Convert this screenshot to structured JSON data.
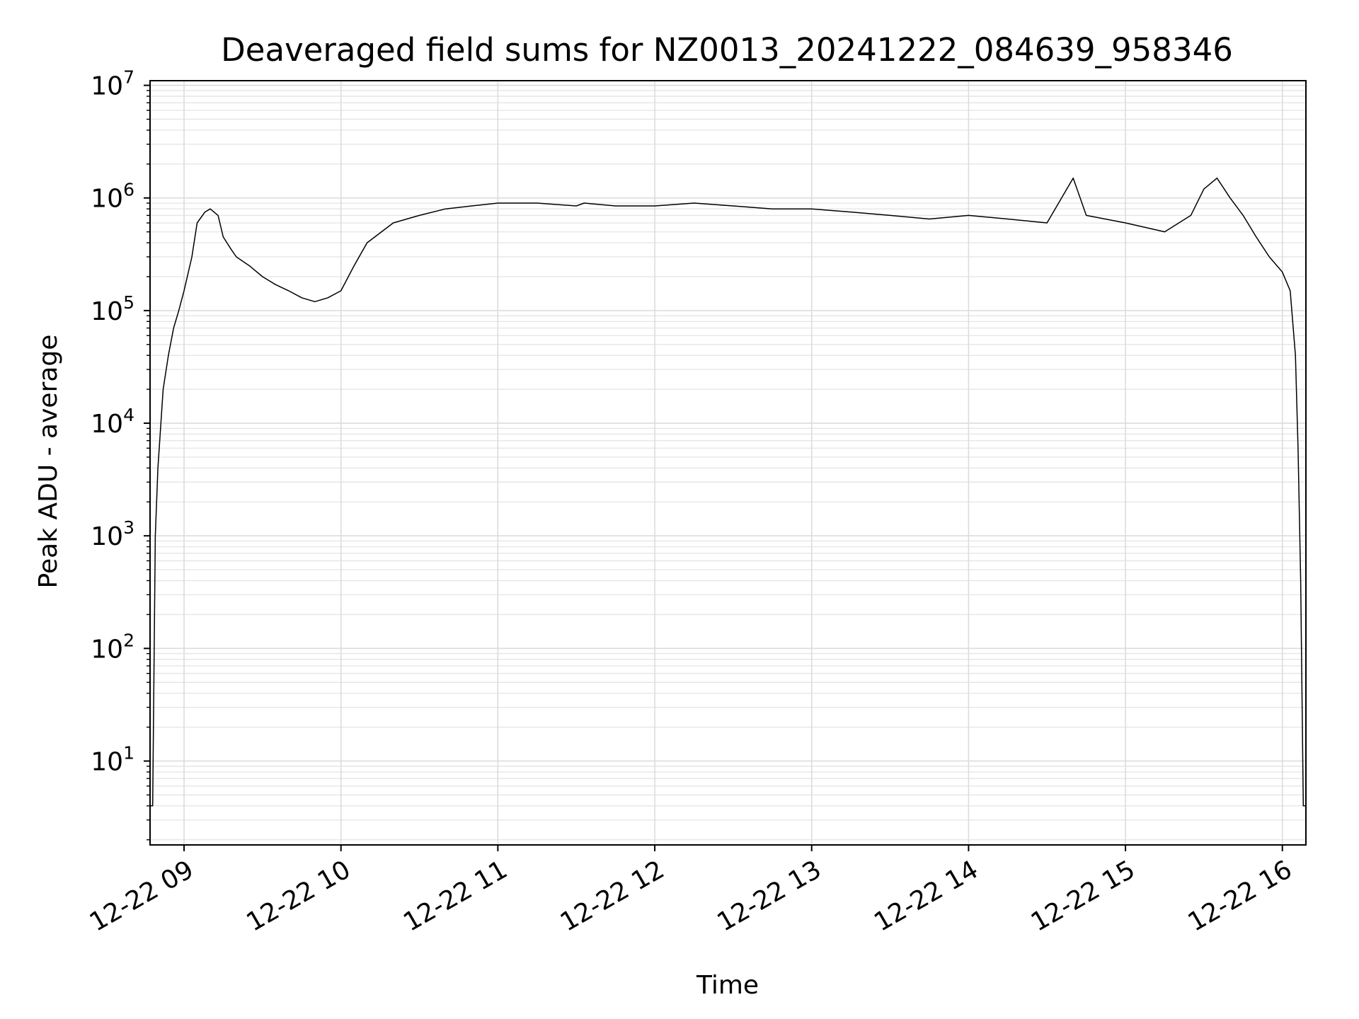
{
  "chart_data": {
    "type": "line",
    "title": "Deaveraged field sums for NZ0013_20241222_084639_958346",
    "xlabel": "Time",
    "ylabel": "Peak ADU - average",
    "yscale": "log",
    "xlim": [
      "2024-12-22 08:47",
      "2024-12-22 16:09"
    ],
    "ylim": [
      1.8,
      11000000
    ],
    "x_tick_labels": [
      "12-22 09",
      "12-22 10",
      "12-22 11",
      "12-22 12",
      "12-22 13",
      "12-22 14",
      "12-22 15",
      "12-22 16"
    ],
    "y_tick_labels": [
      {
        "base": "10",
        "exp": "1"
      },
      {
        "base": "10",
        "exp": "2"
      },
      {
        "base": "10",
        "exp": "3"
      },
      {
        "base": "10",
        "exp": "4"
      },
      {
        "base": "10",
        "exp": "5"
      },
      {
        "base": "10",
        "exp": "6"
      },
      {
        "base": "10",
        "exp": "7"
      }
    ],
    "grid": "both (major and minor)",
    "line_color": "#000000",
    "series": [
      {
        "x": [
          "08:47",
          "08:48",
          "08:49",
          "08:50",
          "08:52",
          "08:54",
          "08:56",
          "08:58",
          "09:00",
          "09:03",
          "09:05",
          "09:08",
          "09:10",
          "09:13",
          "09:15",
          "09:18",
          "09:20",
          "09:25",
          "09:30",
          "09:35",
          "09:40",
          "09:45",
          "09:50",
          "09:55",
          "10:00",
          "10:05",
          "10:10",
          "10:20",
          "10:30",
          "10:40",
          "10:50",
          "11:00",
          "11:15",
          "11:30",
          "11:33",
          "11:45",
          "12:00",
          "12:15",
          "12:30",
          "12:45",
          "13:00",
          "13:15",
          "13:30",
          "13:45",
          "14:00",
          "14:15",
          "14:30",
          "14:40",
          "14:45",
          "15:00",
          "15:15",
          "15:25",
          "15:30",
          "15:35",
          "15:40",
          "15:45",
          "15:50",
          "15:55",
          "16:00",
          "16:03",
          "16:05",
          "16:06",
          "16:07",
          "16:08",
          "16:09"
        ],
        "y": [
          4,
          4,
          1000,
          4000,
          20000,
          40000,
          70000,
          100000,
          150000,
          300000,
          600000,
          750000,
          800000,
          700000,
          450000,
          350000,
          300000,
          250000,
          200000,
          170000,
          150000,
          130000,
          120000,
          130000,
          150000,
          250000,
          400000,
          600000,
          700000,
          800000,
          850000,
          900000,
          900000,
          850000,
          900000,
          850000,
          850000,
          900000,
          850000,
          800000,
          800000,
          750000,
          700000,
          650000,
          700000,
          650000,
          600000,
          1500000,
          700000,
          600000,
          500000,
          700000,
          1200000,
          1500000,
          1000000,
          700000,
          450000,
          300000,
          220000,
          150000,
          40000,
          6000,
          400,
          4,
          4
        ]
      }
    ]
  }
}
